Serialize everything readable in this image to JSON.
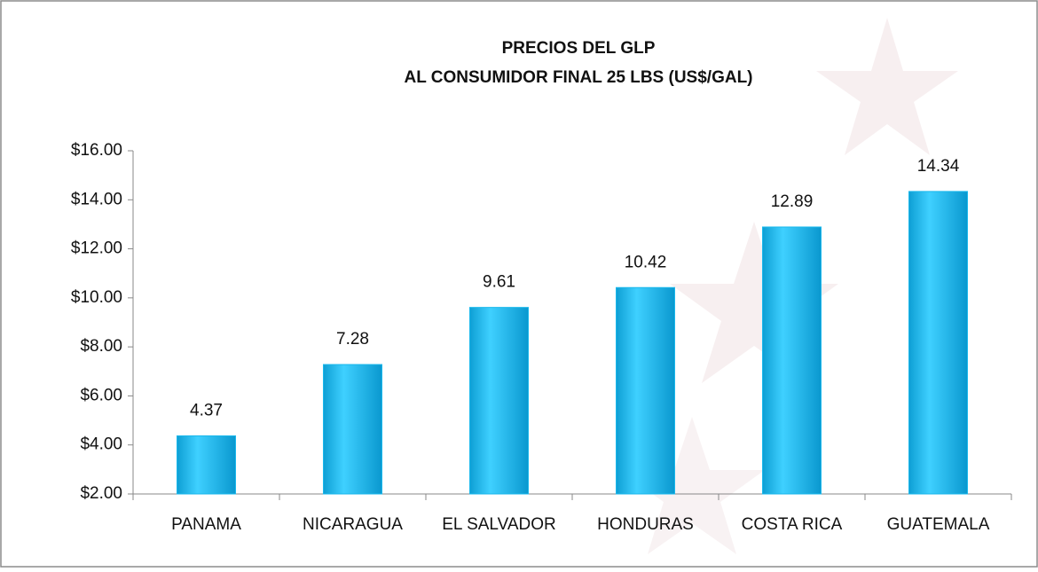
{
  "chart_data": {
    "type": "bar",
    "title": [
      "PRECIOS DEL GLP",
      "AL CONSUMIDOR FINAL  25 LBS (US$/GAL)"
    ],
    "categories": [
      "PANAMA",
      "NICARAGUA",
      "EL SALVADOR",
      "HONDURAS",
      "COSTA RICA",
      "GUATEMALA"
    ],
    "values": [
      4.37,
      7.28,
      9.61,
      10.42,
      12.89,
      14.34
    ],
    "color": "#1ab8ec",
    "ylim": [
      2,
      16
    ],
    "yticks": [
      {
        "value": 2,
        "label": "$2.00"
      },
      {
        "value": 4,
        "label": "$4.00"
      },
      {
        "value": 6,
        "label": "$6.00"
      },
      {
        "value": 8,
        "label": "$8.00"
      },
      {
        "value": 10,
        "label": "$10.00"
      },
      {
        "value": 12,
        "label": "$12.00"
      },
      {
        "value": 14,
        "label": "$14.00"
      },
      {
        "value": 16,
        "label": "$16.00"
      }
    ],
    "grid": false
  }
}
